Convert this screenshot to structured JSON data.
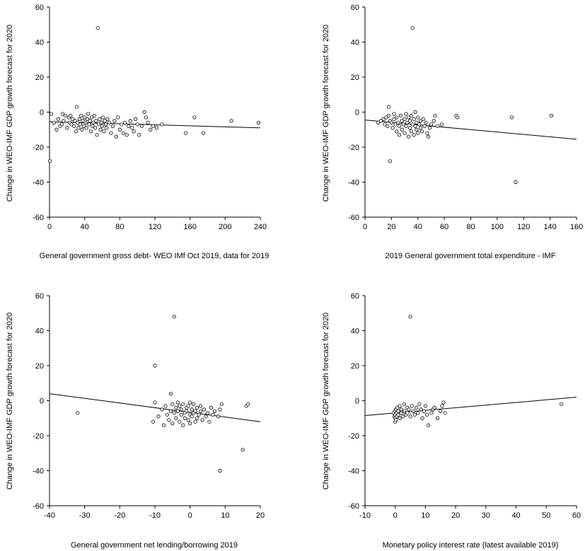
{
  "chart_data": [
    {
      "type": "scatter",
      "xlabel": "General government gross debt- WEO IMf Oct 2019, data for 2019",
      "ylabel": "Change in WEO-IMF GDP growth forecast for 2020",
      "xlim": [
        0,
        240
      ],
      "ylim": [
        -60,
        60
      ],
      "xticks": [
        "0",
        "40",
        "80",
        "120",
        "160",
        "200",
        "240"
      ],
      "yticks": [
        "60",
        "40",
        "20",
        "0",
        "-20",
        "-40",
        "-60"
      ],
      "fit_line": [
        [
          0,
          -5.5
        ],
        [
          240,
          -9
        ]
      ],
      "points": [
        [
          0.5,
          -28
        ],
        [
          2,
          -1
        ],
        [
          5,
          -6
        ],
        [
          8,
          -10
        ],
        [
          10,
          -4
        ],
        [
          12,
          -8
        ],
        [
          14,
          -7
        ],
        [
          15,
          -1
        ],
        [
          16,
          -5
        ],
        [
          18,
          -2
        ],
        [
          20,
          -9
        ],
        [
          22,
          -3
        ],
        [
          23,
          -6
        ],
        [
          24,
          -2
        ],
        [
          25,
          -7
        ],
        [
          26,
          -4
        ],
        [
          28,
          -8
        ],
        [
          29,
          -5
        ],
        [
          30,
          -11
        ],
        [
          31,
          3
        ],
        [
          32,
          -6
        ],
        [
          33,
          -9
        ],
        [
          34,
          -4
        ],
        [
          35,
          -7
        ],
        [
          36,
          -2
        ],
        [
          37,
          -10
        ],
        [
          38,
          -5
        ],
        [
          39,
          -8
        ],
        [
          40,
          -3
        ],
        [
          41,
          -6
        ],
        [
          42,
          -9
        ],
        [
          43,
          -4
        ],
        [
          44,
          -1
        ],
        [
          45,
          -7
        ],
        [
          46,
          -5
        ],
        [
          47,
          -11
        ],
        [
          48,
          -3
        ],
        [
          49,
          -8
        ],
        [
          50,
          -6
        ],
        [
          51,
          -2
        ],
        [
          52,
          -9
        ],
        [
          53,
          -5
        ],
        [
          54,
          -13
        ],
        [
          55,
          48
        ],
        [
          56,
          -7
        ],
        [
          57,
          -4
        ],
        [
          58,
          -10
        ],
        [
          59,
          -6
        ],
        [
          60,
          -8
        ],
        [
          61,
          -3
        ],
        [
          62,
          -11
        ],
        [
          63,
          -5
        ],
        [
          64,
          -7
        ],
        [
          65,
          -9
        ],
        [
          66,
          -4
        ],
        [
          68,
          -6
        ],
        [
          70,
          -12
        ],
        [
          72,
          -8
        ],
        [
          74,
          -5
        ],
        [
          76,
          -14
        ],
        [
          78,
          -3
        ],
        [
          80,
          -10
        ],
        [
          82,
          -7
        ],
        [
          84,
          -12
        ],
        [
          86,
          -6
        ],
        [
          88,
          -13
        ],
        [
          90,
          -8
        ],
        [
          92,
          -5
        ],
        [
          94,
          -9
        ],
        [
          96,
          -11
        ],
        [
          98,
          -4
        ],
        [
          100,
          -7
        ],
        [
          102,
          -13
        ],
        [
          105,
          -8
        ],
        [
          108,
          0
        ],
        [
          110,
          -3
        ],
        [
          112,
          -6
        ],
        [
          115,
          -10
        ],
        [
          118,
          -8
        ],
        [
          122,
          -9
        ],
        [
          128,
          -7
        ],
        [
          155,
          -12
        ],
        [
          165,
          -3
        ],
        [
          175,
          -12
        ],
        [
          207,
          -5
        ],
        [
          238,
          -6
        ]
      ]
    },
    {
      "type": "scatter",
      "xlabel": "2019 General government total expenditure - IMF",
      "ylabel": "Change in WEO-IMF GDP growth forecast for 2020",
      "xlim": [
        0,
        160
      ],
      "ylim": [
        -60,
        60
      ],
      "xticks": [
        "0",
        "20",
        "40",
        "60",
        "80",
        "100",
        "120",
        "140",
        "160"
      ],
      "yticks": [
        "60",
        "40",
        "20",
        "0",
        "-20",
        "-40",
        "-60"
      ],
      "fit_line": [
        [
          0,
          -4.5
        ],
        [
          160,
          -15.5
        ]
      ],
      "points": [
        [
          10,
          -6
        ],
        [
          12,
          -5
        ],
        [
          14,
          -4
        ],
        [
          15,
          -7
        ],
        [
          16,
          -3
        ],
        [
          17,
          -8
        ],
        [
          18,
          3
        ],
        [
          18,
          -2
        ],
        [
          19,
          -28
        ],
        [
          19,
          -5
        ],
        [
          20,
          -6
        ],
        [
          21,
          -9
        ],
        [
          22,
          -1
        ],
        [
          22,
          -4
        ],
        [
          23,
          -7
        ],
        [
          24,
          -11
        ],
        [
          24,
          -3
        ],
        [
          25,
          -6
        ],
        [
          26,
          -13
        ],
        [
          26,
          -8
        ],
        [
          27,
          -2
        ],
        [
          28,
          -5
        ],
        [
          28,
          -10
        ],
        [
          29,
          -7
        ],
        [
          30,
          -4
        ],
        [
          30,
          -12
        ],
        [
          31,
          -1
        ],
        [
          31,
          -8
        ],
        [
          32,
          -6
        ],
        [
          33,
          -14
        ],
        [
          33,
          -3
        ],
        [
          34,
          -9
        ],
        [
          34,
          -5
        ],
        [
          35,
          -11
        ],
        [
          35,
          -2
        ],
        [
          36,
          -7
        ],
        [
          36,
          48
        ],
        [
          37,
          -4
        ],
        [
          37,
          -13
        ],
        [
          38,
          -8
        ],
        [
          38,
          0
        ],
        [
          39,
          -6
        ],
        [
          39,
          -10
        ],
        [
          40,
          -3
        ],
        [
          40,
          -12
        ],
        [
          41,
          -7
        ],
        [
          42,
          -5
        ],
        [
          42,
          -9
        ],
        [
          43,
          -11
        ],
        [
          44,
          -4
        ],
        [
          45,
          -8
        ],
        [
          46,
          -6
        ],
        [
          47,
          -12
        ],
        [
          48,
          -14
        ],
        [
          49,
          -9
        ],
        [
          50,
          -7
        ],
        [
          52,
          -5
        ],
        [
          53,
          -2
        ],
        [
          55,
          -8
        ],
        [
          58,
          -7
        ],
        [
          69,
          -2
        ],
        [
          70,
          -3
        ],
        [
          111,
          -3
        ],
        [
          114,
          -40
        ],
        [
          141,
          -2
        ]
      ]
    },
    {
      "type": "scatter",
      "xlabel": "General government net lending/borrowing 2019",
      "ylabel": "Change in WEO-IMF GDP growth forecast for 2020",
      "xlim": [
        -40,
        20
      ],
      "ylim": [
        -60,
        60
      ],
      "xticks": [
        "-40",
        "-30",
        "-20",
        "-10",
        "0",
        "10",
        "20"
      ],
      "yticks": [
        "60",
        "40",
        "20",
        "0",
        "-20",
        "-40",
        "-60"
      ],
      "fit_line": [
        [
          -40,
          4
        ],
        [
          20,
          -12
        ]
      ],
      "points": [
        [
          -32,
          -7
        ],
        [
          -10,
          20
        ],
        [
          -10.5,
          -12
        ],
        [
          -10,
          -1
        ],
        [
          -9,
          -9
        ],
        [
          -8,
          -5
        ],
        [
          -7.5,
          -14
        ],
        [
          -7,
          -3
        ],
        [
          -6.5,
          -8
        ],
        [
          -6,
          -11
        ],
        [
          -5.5,
          4
        ],
        [
          -5.5,
          -6
        ],
        [
          -5,
          -2
        ],
        [
          -5,
          -13
        ],
        [
          -4.5,
          48
        ],
        [
          -4.5,
          -7
        ],
        [
          -4,
          -4
        ],
        [
          -4,
          -10
        ],
        [
          -3.5,
          -1
        ],
        [
          -3.5,
          -6
        ],
        [
          -3,
          -12
        ],
        [
          -3,
          -3
        ],
        [
          -2.5,
          -8
        ],
        [
          -2.5,
          -5
        ],
        [
          -2,
          -14
        ],
        [
          -2,
          -2
        ],
        [
          -1.5,
          -7
        ],
        [
          -1.5,
          -10
        ],
        [
          -1,
          -4
        ],
        [
          -1,
          -6
        ],
        [
          -0.5,
          -11
        ],
        [
          -0.5,
          -3
        ],
        [
          0,
          -8
        ],
        [
          0,
          -1
        ],
        [
          0,
          -13
        ],
        [
          0.5,
          -5
        ],
        [
          0.5,
          -9
        ],
        [
          1,
          -7
        ],
        [
          1,
          -2
        ],
        [
          1.5,
          -12
        ],
        [
          1.5,
          -6
        ],
        [
          2,
          -4
        ],
        [
          2,
          -10
        ],
        [
          2.5,
          -8
        ],
        [
          3,
          -6
        ],
        [
          3,
          -3
        ],
        [
          3.5,
          -11
        ],
        [
          4,
          -5
        ],
        [
          4.5,
          -9
        ],
        [
          5,
          -7
        ],
        [
          5.5,
          -12
        ],
        [
          6,
          -4
        ],
        [
          6.5,
          -8
        ],
        [
          7,
          -6
        ],
        [
          8,
          -9
        ],
        [
          8.5,
          -5
        ],
        [
          9,
          -2
        ],
        [
          8.5,
          -40
        ],
        [
          15,
          -28
        ],
        [
          16,
          -3
        ],
        [
          16.5,
          -2
        ]
      ]
    },
    {
      "type": "scatter",
      "xlabel": "Monetary policy interest rate (latest available 2019)",
      "ylabel": "Change in WEO-IMF GDP growth forecast for 2020",
      "xlim": [
        -10,
        60
      ],
      "ylim": [
        -60,
        60
      ],
      "xticks": [
        "-10",
        "0",
        "10",
        "20",
        "30",
        "40",
        "50",
        "60"
      ],
      "yticks": [
        "60",
        "40",
        "20",
        "0",
        "-20",
        "-40",
        "-60"
      ],
      "fit_line": [
        [
          -10,
          -8.5
        ],
        [
          60,
          2
        ]
      ],
      "points": [
        [
          -0.5,
          -7
        ],
        [
          -0.3,
          -9
        ],
        [
          0,
          -12
        ],
        [
          0,
          -10
        ],
        [
          0,
          -6
        ],
        [
          0,
          -8
        ],
        [
          0.2,
          -11
        ],
        [
          0.2,
          -5
        ],
        [
          0.5,
          -7
        ],
        [
          0.5,
          -9
        ],
        [
          0.7,
          -4
        ],
        [
          1,
          -6
        ],
        [
          1,
          -8
        ],
        [
          1.5,
          -3
        ],
        [
          1.5,
          -10
        ],
        [
          2,
          -7
        ],
        [
          2,
          -5
        ],
        [
          2.5,
          -9
        ],
        [
          3,
          -2
        ],
        [
          3,
          -6
        ],
        [
          3.5,
          -8
        ],
        [
          4,
          -4
        ],
        [
          4,
          -7
        ],
        [
          4.5,
          -5
        ],
        [
          5,
          48
        ],
        [
          5,
          -9
        ],
        [
          5.5,
          -3
        ],
        [
          6,
          -6
        ],
        [
          6.5,
          -8
        ],
        [
          7,
          -4
        ],
        [
          7.5,
          -7
        ],
        [
          8,
          -2
        ],
        [
          8.5,
          -5
        ],
        [
          9,
          -10
        ],
        [
          9.5,
          -6
        ],
        [
          10,
          -3
        ],
        [
          10.5,
          -8
        ],
        [
          11,
          -14
        ],
        [
          12,
          -7
        ],
        [
          12.5,
          -5
        ],
        [
          13,
          -4
        ],
        [
          14,
          -10
        ],
        [
          15,
          -6
        ],
        [
          15.5,
          -3
        ],
        [
          16,
          -1
        ],
        [
          16.5,
          -7
        ],
        [
          55,
          -2
        ]
      ]
    }
  ]
}
